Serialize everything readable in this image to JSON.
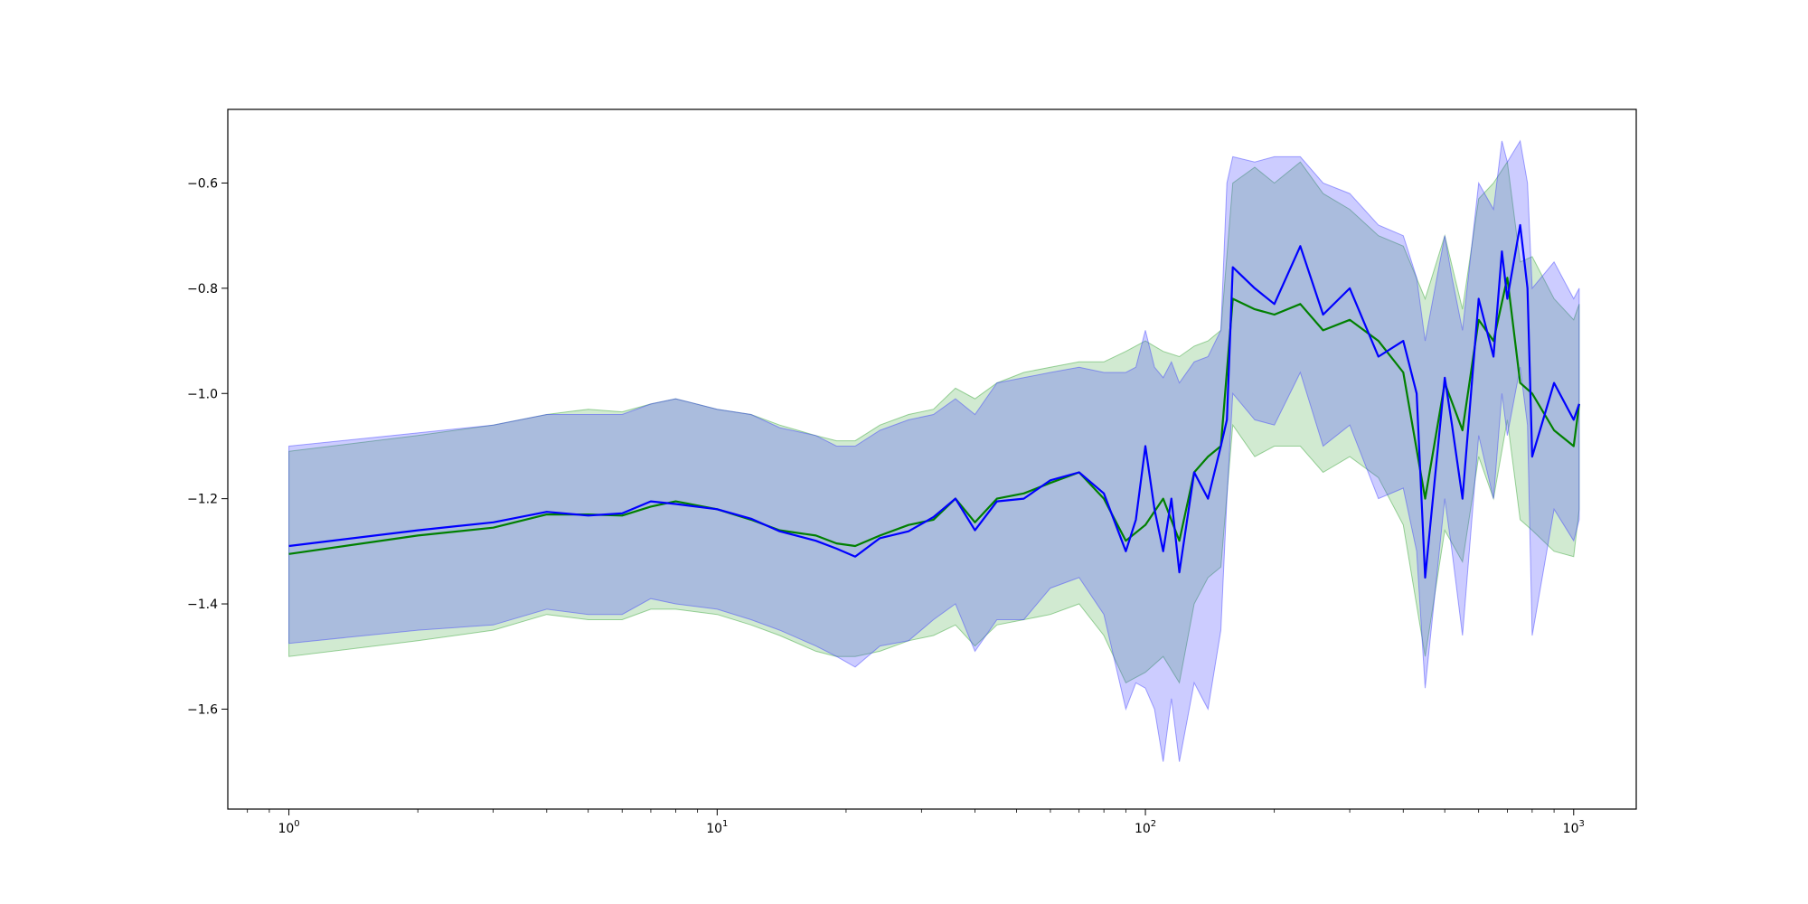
{
  "chart_data": {
    "type": "line",
    "title": "",
    "xlabel": "",
    "ylabel": "",
    "x_scale": "log",
    "xlim": [
      0.72,
      1400
    ],
    "ylim": [
      -1.79,
      -0.46
    ],
    "grid": false,
    "legend": "none",
    "xticks": [
      {
        "value": 1,
        "base": "10",
        "exp": "0"
      },
      {
        "value": 10,
        "base": "10",
        "exp": "1"
      },
      {
        "value": 100,
        "base": "10",
        "exp": "2"
      },
      {
        "value": 1000,
        "base": "10",
        "exp": "3"
      }
    ],
    "yticks": [
      {
        "value": -1.6,
        "label": "−1.6"
      },
      {
        "value": -1.4,
        "label": "−1.4"
      },
      {
        "value": -1.2,
        "label": "−1.2"
      },
      {
        "value": -1.0,
        "label": "−1.0"
      },
      {
        "value": -0.8,
        "label": "−0.8"
      },
      {
        "value": -0.6,
        "label": "−0.6"
      }
    ],
    "series": [
      {
        "color": "#008000",
        "band_color": "#2ca02c",
        "band_opacity": 0.22,
        "x": [
          1,
          2,
          3,
          4,
          5,
          6,
          7,
          8,
          10,
          12,
          14,
          17,
          19,
          21,
          24,
          28,
          32,
          36,
          40,
          45,
          52,
          60,
          70,
          80,
          90,
          100,
          110,
          120,
          130,
          140,
          150,
          160,
          180,
          200,
          230,
          260,
          300,
          350,
          400,
          450,
          500,
          550,
          600,
          650,
          700,
          750,
          800,
          900,
          1000,
          1030
        ],
        "y": [
          -1.305,
          -1.27,
          -1.255,
          -1.23,
          -1.23,
          -1.232,
          -1.215,
          -1.205,
          -1.22,
          -1.24,
          -1.26,
          -1.27,
          -1.285,
          -1.29,
          -1.27,
          -1.25,
          -1.24,
          -1.2,
          -1.245,
          -1.2,
          -1.19,
          -1.17,
          -1.15,
          -1.2,
          -1.28,
          -1.25,
          -1.2,
          -1.28,
          -1.15,
          -1.12,
          -1.1,
          -0.82,
          -0.84,
          -0.85,
          -0.83,
          -0.88,
          -0.86,
          -0.9,
          -0.96,
          -1.2,
          -0.98,
          -1.07,
          -0.86,
          -0.9,
          -0.78,
          -0.98,
          -1.0,
          -1.07,
          -1.1,
          -1.02
        ],
        "upper": [
          -1.11,
          -1.08,
          -1.06,
          -1.04,
          -1.03,
          -1.035,
          -1.02,
          -1.01,
          -1.03,
          -1.04,
          -1.06,
          -1.08,
          -1.09,
          -1.09,
          -1.06,
          -1.04,
          -1.03,
          -0.99,
          -1.01,
          -0.98,
          -0.96,
          -0.95,
          -0.94,
          -0.94,
          -0.92,
          -0.9,
          -0.92,
          -0.93,
          -0.91,
          -0.9,
          -0.88,
          -0.6,
          -0.57,
          -0.6,
          -0.56,
          -0.62,
          -0.65,
          -0.7,
          -0.72,
          -0.82,
          -0.7,
          -0.84,
          -0.63,
          -0.6,
          -0.56,
          -0.75,
          -0.74,
          -0.82,
          -0.86,
          -0.83
        ],
        "lower": [
          -1.5,
          -1.47,
          -1.45,
          -1.42,
          -1.43,
          -1.43,
          -1.41,
          -1.41,
          -1.42,
          -1.44,
          -1.46,
          -1.49,
          -1.5,
          -1.5,
          -1.49,
          -1.47,
          -1.46,
          -1.44,
          -1.48,
          -1.44,
          -1.43,
          -1.42,
          -1.4,
          -1.46,
          -1.55,
          -1.53,
          -1.5,
          -1.55,
          -1.4,
          -1.35,
          -1.33,
          -1.06,
          -1.12,
          -1.1,
          -1.1,
          -1.15,
          -1.12,
          -1.16,
          -1.25,
          -1.5,
          -1.26,
          -1.32,
          -1.12,
          -1.2,
          -1.05,
          -1.24,
          -1.26,
          -1.3,
          -1.31,
          -1.22
        ]
      },
      {
        "color": "#0000ff",
        "band_color": "#3a3aff",
        "band_opacity": 0.26,
        "x": [
          1,
          2,
          3,
          4,
          5,
          6,
          7,
          8,
          10,
          12,
          14,
          17,
          19,
          21,
          24,
          28,
          32,
          36,
          40,
          45,
          52,
          60,
          70,
          80,
          90,
          95,
          100,
          105,
          110,
          115,
          120,
          130,
          140,
          150,
          155,
          160,
          180,
          200,
          230,
          260,
          300,
          350,
          400,
          430,
          450,
          500,
          520,
          550,
          600,
          650,
          680,
          700,
          750,
          780,
          800,
          900,
          1000,
          1030
        ],
        "y": [
          -1.29,
          -1.26,
          -1.245,
          -1.225,
          -1.232,
          -1.228,
          -1.205,
          -1.21,
          -1.22,
          -1.238,
          -1.262,
          -1.28,
          -1.295,
          -1.31,
          -1.275,
          -1.262,
          -1.235,
          -1.2,
          -1.26,
          -1.205,
          -1.2,
          -1.165,
          -1.15,
          -1.19,
          -1.3,
          -1.24,
          -1.1,
          -1.22,
          -1.3,
          -1.2,
          -1.34,
          -1.15,
          -1.2,
          -1.1,
          -1.05,
          -0.76,
          -0.8,
          -0.83,
          -0.72,
          -0.85,
          -0.8,
          -0.93,
          -0.9,
          -1.0,
          -1.35,
          -0.97,
          -1.06,
          -1.2,
          -0.82,
          -0.93,
          -0.73,
          -0.82,
          -0.68,
          -0.8,
          -1.12,
          -0.98,
          -1.05,
          -1.02
        ],
        "upper": [
          -1.1,
          -1.075,
          -1.06,
          -1.04,
          -1.04,
          -1.04,
          -1.02,
          -1.01,
          -1.03,
          -1.04,
          -1.065,
          -1.08,
          -1.1,
          -1.1,
          -1.07,
          -1.05,
          -1.04,
          -1.01,
          -1.04,
          -0.98,
          -0.97,
          -0.96,
          -0.95,
          -0.96,
          -0.96,
          -0.95,
          -0.88,
          -0.95,
          -0.97,
          -0.94,
          -0.98,
          -0.94,
          -0.93,
          -0.88,
          -0.6,
          -0.55,
          -0.56,
          -0.55,
          -0.55,
          -0.6,
          -0.62,
          -0.68,
          -0.7,
          -0.78,
          -0.9,
          -0.7,
          -0.78,
          -0.88,
          -0.6,
          -0.65,
          -0.52,
          -0.56,
          -0.52,
          -0.6,
          -0.8,
          -0.75,
          -0.82,
          -0.8
        ],
        "lower": [
          -1.475,
          -1.45,
          -1.44,
          -1.41,
          -1.42,
          -1.42,
          -1.39,
          -1.4,
          -1.41,
          -1.43,
          -1.45,
          -1.48,
          -1.5,
          -1.52,
          -1.48,
          -1.47,
          -1.43,
          -1.4,
          -1.49,
          -1.43,
          -1.43,
          -1.37,
          -1.35,
          -1.42,
          -1.6,
          -1.55,
          -1.56,
          -1.6,
          -1.7,
          -1.58,
          -1.7,
          -1.55,
          -1.6,
          -1.45,
          -1.2,
          -1.0,
          -1.05,
          -1.06,
          -0.96,
          -1.1,
          -1.06,
          -1.2,
          -1.18,
          -1.3,
          -1.56,
          -1.2,
          -1.3,
          -1.46,
          -1.08,
          -1.2,
          -1.0,
          -1.08,
          -0.95,
          -1.06,
          -1.46,
          -1.22,
          -1.28,
          -1.24
        ]
      }
    ]
  }
}
